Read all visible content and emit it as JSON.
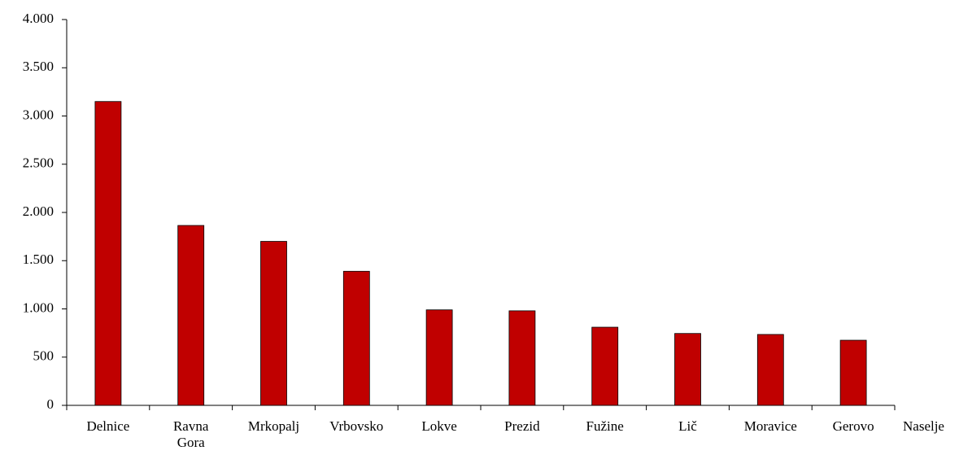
{
  "chart_data": {
    "type": "bar",
    "x_label": "Naselje",
    "categories": [
      "Delnice",
      "Ravna Gora",
      "Mrkopalj",
      "Vrbovsko",
      "Lokve",
      "Prezid",
      "Fužine",
      "Lič",
      "Moravice",
      "Gerovo"
    ],
    "values": [
      3150,
      1865,
      1700,
      1390,
      990,
      980,
      810,
      745,
      735,
      675
    ],
    "color": "#c00000",
    "ylim": [
      0,
      4000
    ],
    "yticks": [
      0,
      500,
      {
        "value": 1000,
        "label": "1.000"
      },
      {
        "value": 1500,
        "label": "1.500"
      },
      {
        "value": 2000,
        "label": "2.000"
      },
      {
        "value": 2500,
        "label": "2.500"
      },
      {
        "value": 3000,
        "label": "3.000"
      },
      {
        "value": 3500,
        "label": "3.500"
      },
      {
        "value": 4000,
        "label": "4.000"
      }
    ],
    "grid": false
  }
}
